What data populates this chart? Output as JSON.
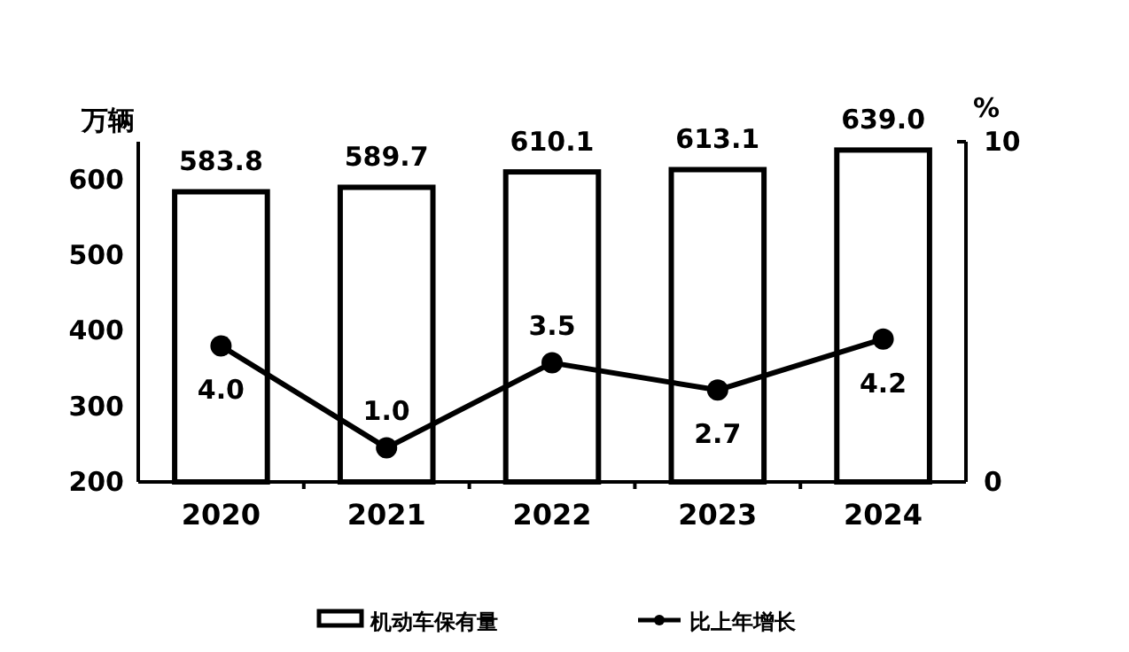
{
  "chart_data": {
    "type": "bar",
    "categories": [
      "2020",
      "2021",
      "2022",
      "2023",
      "2024"
    ],
    "ylabel": "万辆",
    "y2label": "%",
    "ylim": [
      200,
      650
    ],
    "yticks": [
      200,
      300,
      400,
      500,
      600
    ],
    "y2lim": [
      0,
      10
    ],
    "y2ticks": [
      0,
      10
    ],
    "grid": false,
    "legend": "bottom",
    "series": [
      {
        "name": "机动车保有量",
        "type": "bar",
        "color": "#ffffff",
        "values": [
          583.8,
          589.7,
          610.1,
          613.1,
          639.0
        ],
        "value_labels": [
          "583.8",
          "589.7",
          "610.1",
          "613.1",
          "639.0"
        ]
      },
      {
        "name": "比上年增长",
        "type": "line",
        "axis": "y2",
        "color": "#000000",
        "marker": "circle",
        "values": [
          4.0,
          1.0,
          3.5,
          2.7,
          4.2
        ],
        "value_labels": [
          "4.0",
          "1.0",
          "3.5",
          "2.7",
          "4.2"
        ]
      }
    ]
  }
}
